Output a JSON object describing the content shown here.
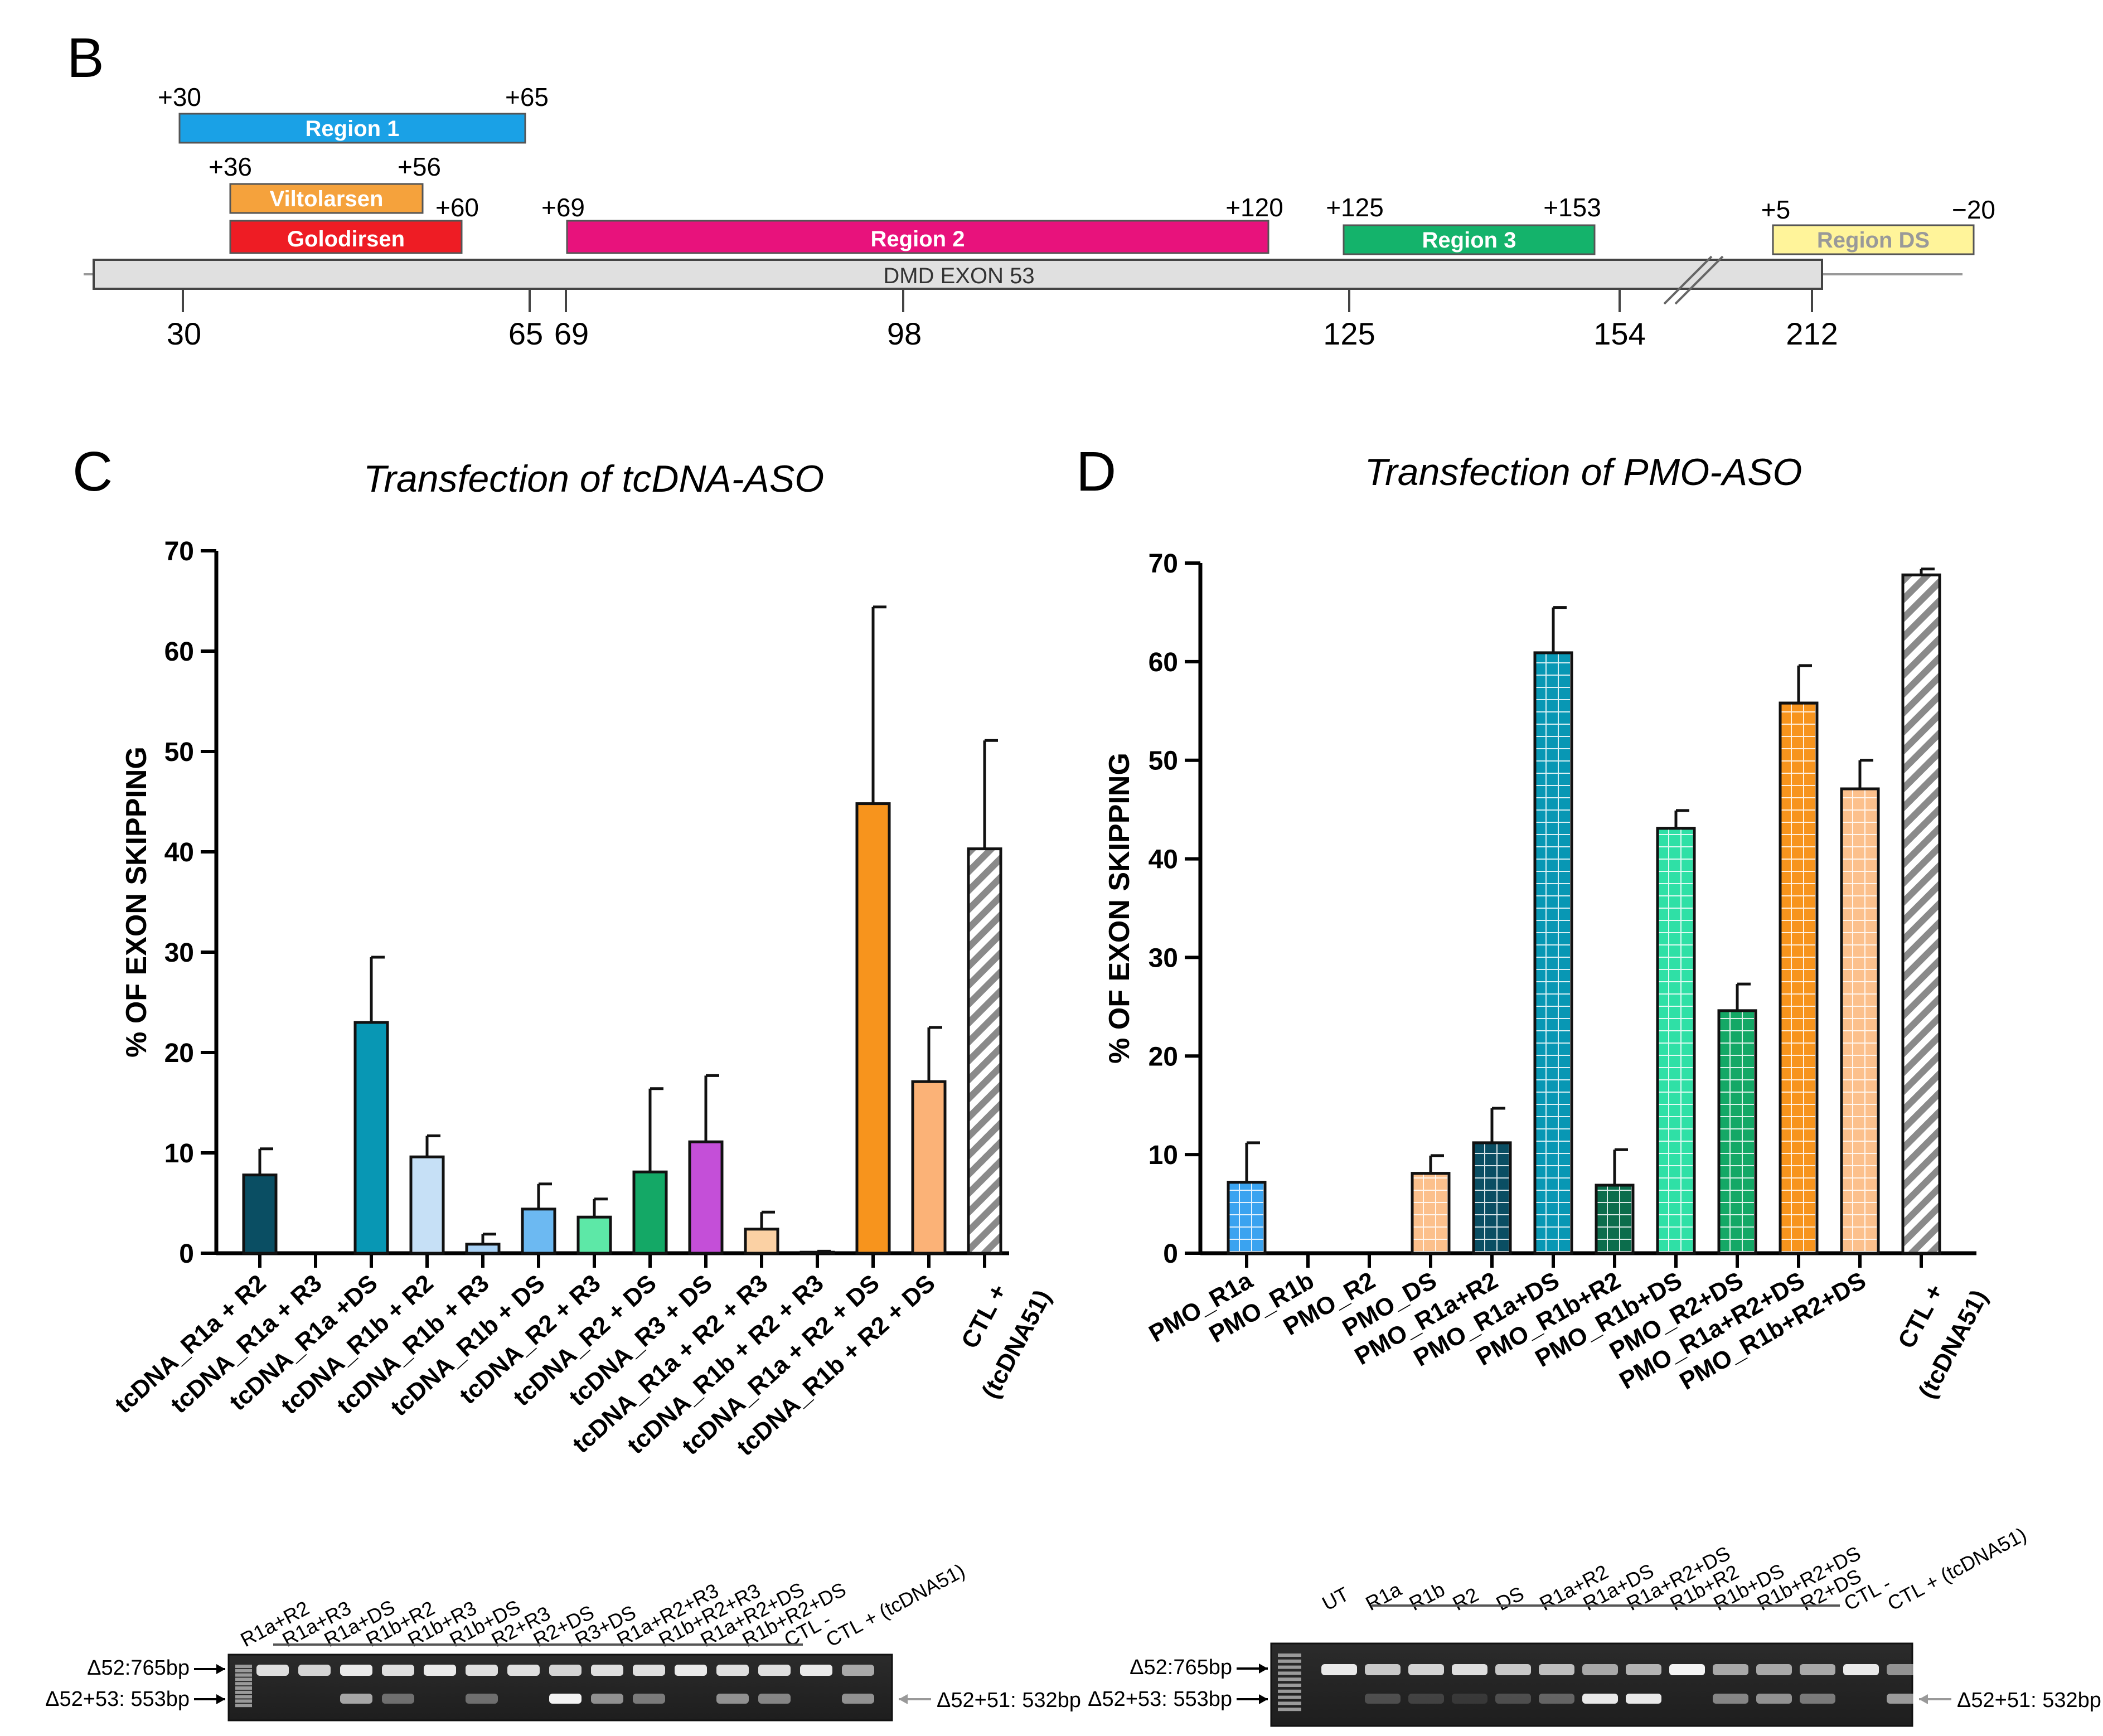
{
  "panels": {
    "b": "B",
    "c": "C",
    "d": "D"
  },
  "region_map": {
    "exon_label": "DMD EXON 53",
    "axis_ticks": [
      "30",
      "65",
      "69",
      "98",
      "125",
      "154",
      "212"
    ],
    "segments": [
      {
        "key": "r1",
        "label": "Region 1",
        "start_label": "+30",
        "end_label": "+65",
        "color": "#1aa1e6",
        "text_color": "#ffffff"
      },
      {
        "key": "vilto",
        "label": "Viltolarsen",
        "start_label": "+36",
        "end_label": "+56",
        "color": "#f5a23c",
        "text_color": "#ffffff"
      },
      {
        "key": "golo",
        "label": "Golodirsen",
        "start_label": "",
        "end_label": "+60",
        "color": "#ee1c24",
        "text_color": "#ffffff"
      },
      {
        "key": "r2",
        "label": "Region 2",
        "start_label": "+69",
        "end_label": "+120",
        "color": "#e8127c",
        "text_color": "#ffffff"
      },
      {
        "key": "r3",
        "label": "Region 3",
        "start_label": "+125",
        "end_label": "+153",
        "color": "#14b36b",
        "text_color": "#ffffff"
      },
      {
        "key": "ds",
        "label": "Region DS",
        "start_label": "+5",
        "end_label": "−20",
        "color": "#fff49a",
        "text_color": "#999999"
      }
    ]
  },
  "chart_data": [
    {
      "type": "bar",
      "title": "Transfection of tcDNA-ASO",
      "ylabel": "% OF EXON SKIPPING",
      "ylim": [
        0,
        70
      ],
      "yticks": [
        "0",
        "10",
        "20",
        "30",
        "40",
        "50",
        "60",
        "70"
      ],
      "categories": [
        "tcDNA_R1a + R2",
        "tcDNA_R1a + R3",
        "tcDNA_R1a +DS",
        "tcDNA_R1b + R2",
        "tcDNA_R1b + R3",
        "tcDNA_R1b + DS",
        "tcDNA_R2 + R3",
        "tcDNA_R2 + DS",
        "tcDNA_R3 + DS",
        "tcDNA_R1a + R2 + R3",
        "tcDNA_R1b + R2 + R3",
        "tcDNA_R1a + R2 + DS",
        "tcDNA_R1b + R2 + DS",
        "CTL +"
      ],
      "category_sublabel": "(tcDNA51)",
      "values": [
        7.8,
        0,
        23.0,
        9.6,
        0.9,
        4.4,
        3.6,
        8.1,
        11.1,
        2.4,
        0.1,
        44.8,
        17.1,
        40.3
      ],
      "errors": [
        2.6,
        0,
        6.5,
        2.1,
        1.0,
        2.5,
        1.8,
        8.3,
        6.6,
        1.7,
        0.1,
        19.6,
        5.4,
        10.8
      ],
      "colors": [
        "#0a4e63",
        "#0a4e63",
        "#0897b4",
        "#c6e0f6",
        "#a8d1f5",
        "#6cb9f2",
        "#5de8a7",
        "#14a866",
        "#c44fd8",
        "#fbd1a4",
        "#fbd1a4",
        "#f7941d",
        "#fbb277",
        "hatch-grey"
      ]
    },
    {
      "type": "bar",
      "title": "Transfection of PMO-ASO",
      "ylabel": "% OF EXON SKIPPING",
      "ylim": [
        0,
        70
      ],
      "yticks": [
        "0",
        "10",
        "20",
        "30",
        "40",
        "50",
        "60",
        "70"
      ],
      "categories": [
        "PMO_R1a",
        "PMO_R1b",
        "PMO_R2",
        "PMO_DS",
        "PMO_R1a+R2",
        "PMO_R1a+DS",
        "PMO_R1b+R2",
        "PMO_R1b+DS",
        "PMO_R2+DS",
        "PMO_R1a+R2+DS",
        "PMO_R1b+R2+DS",
        "CTL +"
      ],
      "category_sublabel": "(tcDNA51)",
      "values": [
        7.2,
        0,
        0,
        8.1,
        11.2,
        60.9,
        6.9,
        43.1,
        24.6,
        55.8,
        47.1,
        68.8
      ],
      "errors": [
        4.0,
        0,
        0,
        1.8,
        3.5,
        4.6,
        3.6,
        1.8,
        2.7,
        3.8,
        2.9,
        0.6
      ],
      "colors": [
        "#3aa3f0",
        "#3aa3f0",
        "#3aa3f0",
        "#fcc08c",
        "#0a4e63",
        "#0897b4",
        "#0c6d4c",
        "#2fe0a6",
        "#14a866",
        "#f7941d",
        "#fcc08c",
        "hatch-grey"
      ]
    }
  ],
  "gel_left": {
    "lanes": [
      "R1a+R2",
      "R1a+R3",
      "R1a+DS",
      "R1b+R2",
      "R1b+R3",
      "R1b+DS",
      "R2+R3",
      "R2+DS",
      "R3+DS",
      "R1a+R2+R3",
      "R1b+R2+R3",
      "R1a+R2+DS",
      "R1b+R2+DS",
      "CTL -",
      "CTL + (tcDNA51)"
    ],
    "band_upper": "Δ52:765bp",
    "band_lower": "Δ52+53: 553bp",
    "band_ref": "Δ52+51: 532bp"
  },
  "gel_right": {
    "lanes": [
      "UT",
      "R1a",
      "R1b",
      "R2",
      "DS",
      "R1a+R2",
      "R1a+DS",
      "R1a+R2+DS",
      "R1b+R2",
      "R1b+DS",
      "R1b+R2+DS",
      "R2+DS",
      "CTL -",
      "CTL + (tcDNA51)"
    ],
    "band_upper": "Δ52:765bp",
    "band_lower": "Δ52+53: 553bp",
    "band_ref": "Δ52+51: 532bp"
  }
}
